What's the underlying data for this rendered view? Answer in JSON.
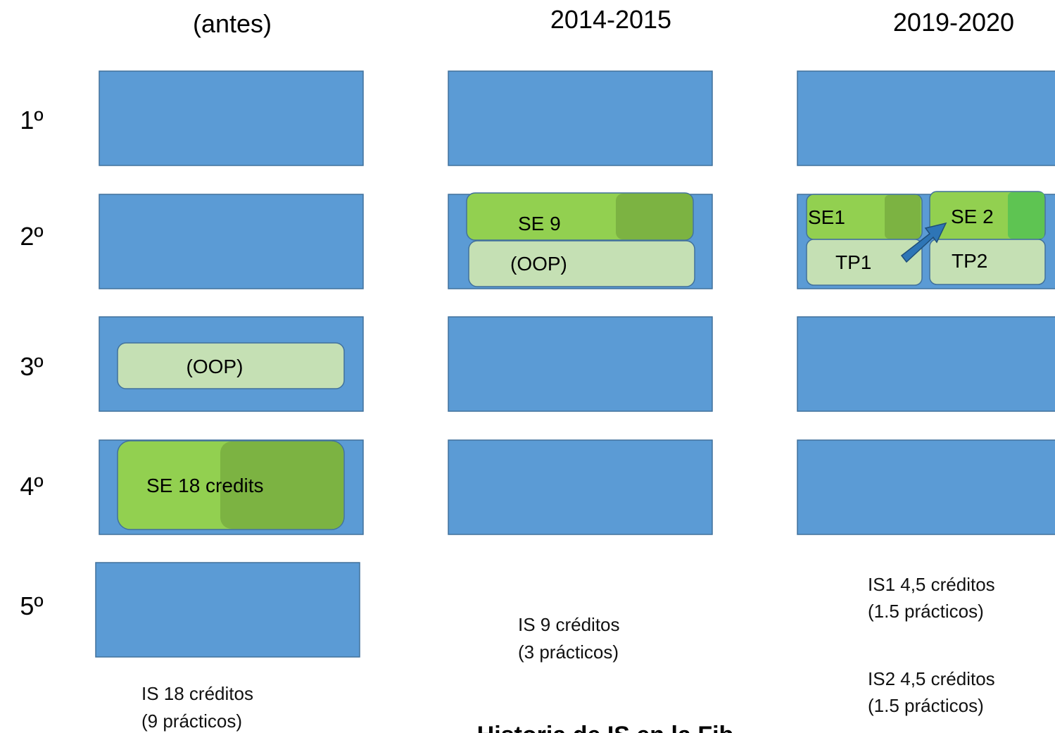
{
  "columns": [
    "(antes)",
    "2014-2015",
    "2019-2020"
  ],
  "rows": [
    "1º",
    "2º",
    "3º",
    "4º",
    "5º"
  ],
  "boxes": {
    "antes_oop": "(OOP)",
    "antes_se": "SE 18 credits",
    "c2014_se": "SE 9",
    "c2014_oop": "(OOP)",
    "c2019_se1": "SE1",
    "c2019_se2": "SE 2",
    "c2019_tp1": "TP1",
    "c2019_tp2": "TP2"
  },
  "notes": {
    "antes": [
      "IS 18 créditos",
      "(9 prácticos)"
    ],
    "c2014": [
      "IS 9 créditos",
      "(3 prácticos)"
    ],
    "c2019_is1": [
      "IS1 4,5 créditos",
      "(1.5 prácticos)"
    ],
    "c2019_is2": [
      "IS2 4,5 créditos",
      "(1.5 prácticos)"
    ]
  },
  "title": "Historia de IS en la Fib"
}
